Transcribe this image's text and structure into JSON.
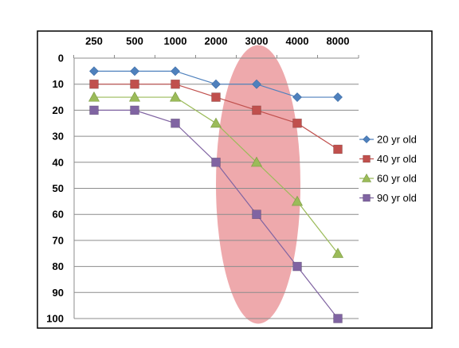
{
  "chart_data": {
    "type": "line",
    "categories": [
      "250",
      "500",
      "1000",
      "2000",
      "3000",
      "4000",
      "8000"
    ],
    "yticks": [
      "0",
      "10",
      "20",
      "30",
      "40",
      "50",
      "60",
      "70",
      "80",
      "90",
      "100"
    ],
    "ylim": [
      0,
      100
    ],
    "y_inverted": true,
    "x_axis_position": "top",
    "grid": true,
    "legend_position": "right",
    "highlight": {
      "shape": "ellipse",
      "x_range": [
        "2000",
        "4000"
      ],
      "y_range": [
        -5,
        102
      ],
      "color": "#e8888c"
    },
    "series": [
      {
        "name": "20 yr old",
        "marker": "diamond",
        "color": "#4f81bd",
        "values": [
          5,
          5,
          5,
          10,
          10,
          15,
          15
        ]
      },
      {
        "name": "40 yr old",
        "marker": "square",
        "color": "#c0504d",
        "values": [
          10,
          10,
          10,
          15,
          20,
          25,
          35
        ]
      },
      {
        "name": "60 yr old",
        "marker": "triangle",
        "color": "#9bbb59",
        "values": [
          15,
          15,
          15,
          25,
          40,
          55,
          75
        ]
      },
      {
        "name": "90 yr old",
        "marker": "square",
        "color": "#8064a2",
        "values": [
          20,
          20,
          25,
          40,
          60,
          80,
          100
        ]
      }
    ]
  }
}
